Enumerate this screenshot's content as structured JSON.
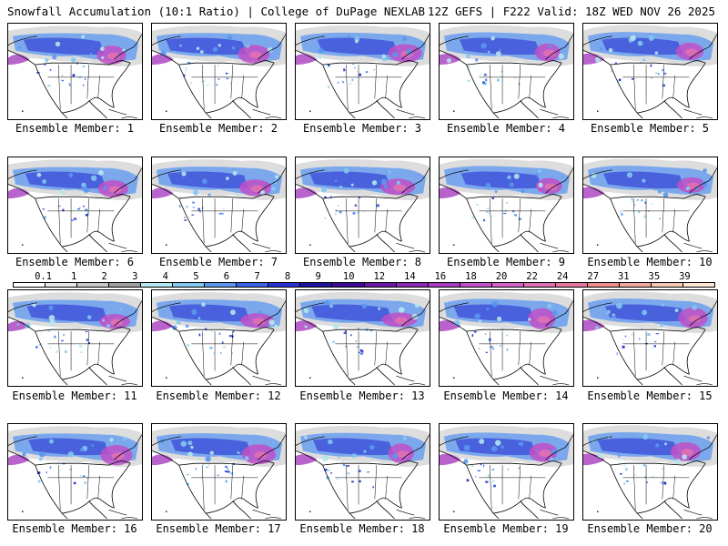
{
  "header": {
    "left": "Snowfall Accumulation (10:1 Ratio) | College of DuPage NEXLAB",
    "right": "12Z GEFS | F222 Valid: 18Z WED NOV 26 2025"
  },
  "panels": [
    {
      "label": "Ensemble Member: 1"
    },
    {
      "label": "Ensemble Member: 2"
    },
    {
      "label": "Ensemble Member: 3"
    },
    {
      "label": "Ensemble Member: 4"
    },
    {
      "label": "Ensemble Member: 5"
    },
    {
      "label": "Ensemble Member: 6"
    },
    {
      "label": "Ensemble Member: 7"
    },
    {
      "label": "Ensemble Member: 8"
    },
    {
      "label": "Ensemble Member: 9"
    },
    {
      "label": "Ensemble Member: 10"
    },
    {
      "label": "Ensemble Member: 11"
    },
    {
      "label": "Ensemble Member: 12"
    },
    {
      "label": "Ensemble Member: 13"
    },
    {
      "label": "Ensemble Member: 14"
    },
    {
      "label": "Ensemble Member: 15"
    },
    {
      "label": "Ensemble Member: 16"
    },
    {
      "label": "Ensemble Member: 17"
    },
    {
      "label": "Ensemble Member: 18"
    },
    {
      "label": "Ensemble Member: 19"
    },
    {
      "label": "Ensemble Member: 20"
    }
  ],
  "legend": {
    "ticks": [
      "0.1",
      "1",
      "2",
      "3",
      "4",
      "5",
      "6",
      "7",
      "8",
      "9",
      "10",
      "12",
      "14",
      "16",
      "18",
      "20",
      "22",
      "24",
      "27",
      "31",
      "35",
      "39"
    ],
    "colors": [
      "#ffffff",
      "#e6e6e6",
      "#c8c8c8",
      "#a0a0a0",
      "#b4e6f0",
      "#82c8f0",
      "#5a96f0",
      "#3c64e6",
      "#2832d2",
      "#1e14a0",
      "#3c0a96",
      "#6a1aa6",
      "#8c28b4",
      "#a83cc0",
      "#c050c8",
      "#d264c8",
      "#e070b4",
      "#e678a0",
      "#ec8c8c",
      "#f0a8a0",
      "#f5c8b4",
      "#fae6d2"
    ]
  }
}
